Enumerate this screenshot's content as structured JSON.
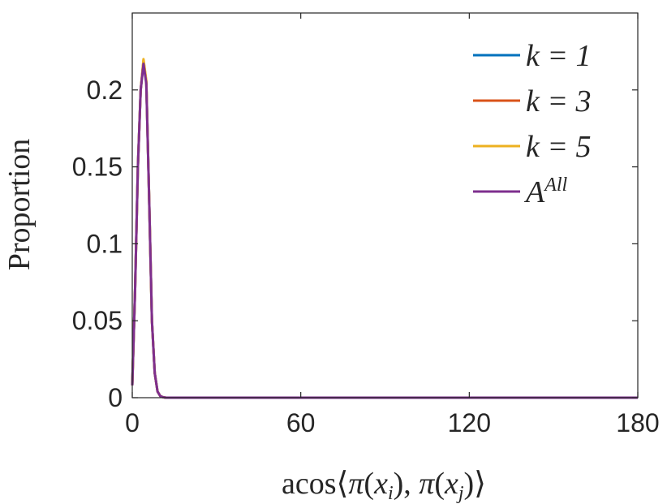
{
  "chart_data": {
    "type": "line",
    "xlabel": "acos⟨π(x_i), π(x_j)⟩",
    "ylabel": "Proportion",
    "xlim": [
      0,
      180
    ],
    "ylim": [
      0,
      0.25
    ],
    "x_ticks": [
      0,
      60,
      120,
      180
    ],
    "x_tick_labels": [
      "0",
      "60",
      "120",
      "180"
    ],
    "y_ticks": [
      0,
      0.05,
      0.1,
      0.15,
      0.2
    ],
    "y_tick_labels": [
      "0",
      "0.05",
      "0.1",
      "0.15",
      "0.2"
    ],
    "grid": false,
    "legend_position": "top-right",
    "x": [
      0,
      1,
      2,
      3,
      4,
      5,
      6,
      7,
      8,
      9,
      10,
      11,
      12,
      14,
      20,
      40,
      60,
      80,
      100,
      120,
      140,
      160,
      180
    ],
    "series": [
      {
        "name": "k = 1",
        "name_base": "k = 1",
        "color": "#0072BD",
        "values": [
          0.008,
          0.07,
          0.15,
          0.2,
          0.218,
          0.205,
          0.13,
          0.05,
          0.016,
          0.004,
          0.001,
          0.0003,
          0,
          0,
          0,
          0,
          0,
          0,
          0,
          0,
          0,
          0,
          0
        ]
      },
      {
        "name": "k = 3",
        "name_base": "k = 3",
        "color": "#D95319",
        "values": [
          0.008,
          0.07,
          0.15,
          0.2,
          0.219,
          0.205,
          0.13,
          0.05,
          0.016,
          0.004,
          0.001,
          0.0003,
          0,
          0,
          0,
          0,
          0,
          0,
          0,
          0,
          0,
          0,
          0
        ]
      },
      {
        "name": "k = 5",
        "name_base": "k = 5",
        "color": "#EDB120",
        "values": [
          0.008,
          0.07,
          0.15,
          0.2,
          0.22,
          0.206,
          0.13,
          0.05,
          0.016,
          0.004,
          0.001,
          0.0003,
          0,
          0,
          0,
          0,
          0,
          0,
          0,
          0,
          0,
          0,
          0
        ]
      },
      {
        "name": "A^All",
        "name_base": "A",
        "name_sup": "All",
        "color": "#7E2F8E",
        "values": [
          0.008,
          0.07,
          0.15,
          0.2,
          0.217,
          0.204,
          0.13,
          0.05,
          0.016,
          0.004,
          0.001,
          0.0003,
          0,
          0,
          0,
          0,
          0,
          0,
          0,
          0,
          0,
          0,
          0
        ]
      }
    ]
  }
}
